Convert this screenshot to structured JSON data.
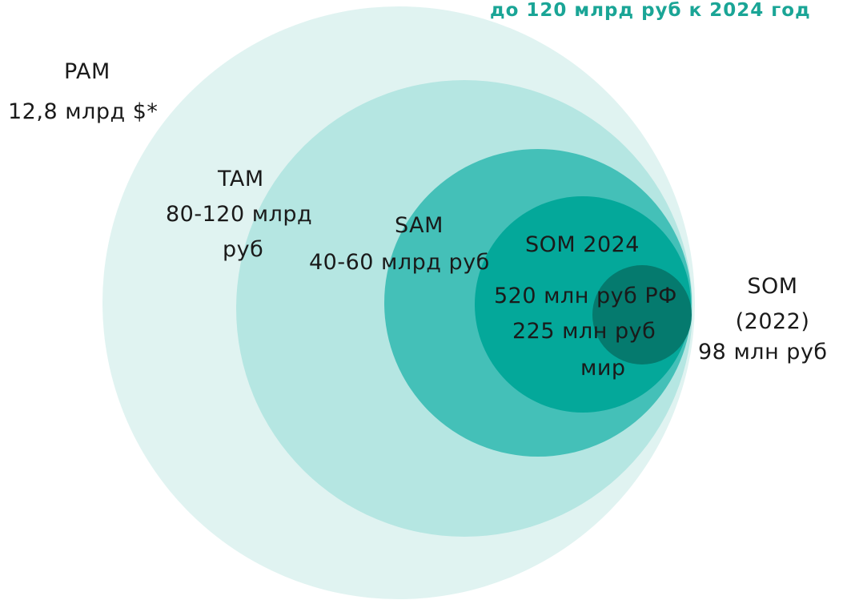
{
  "note": "до 120 млрд руб к 2024 год",
  "colors": {
    "pam": "#e0f3f1",
    "tam": "#b5e6e2",
    "sam": "#44c0b8",
    "som2024": "#04a89a",
    "som2022": "#057a6e",
    "note": "#1aa596"
  },
  "labels": {
    "pam_title": "PAM",
    "pam_value": "12,8 млрд $*",
    "tam_title": "TAM",
    "tam_value_1": "80-120 млрд",
    "tam_value_2": "руб",
    "sam_title": "SAM",
    "sam_value": "40-60 млрд руб",
    "som2024_title": "SOM 2024",
    "som2024_value_1": "520 млн руб РФ",
    "som2024_value_2": "225 млн руб",
    "som2024_value_3": "мир",
    "som2022_title_1": "SOM",
    "som2022_title_2": "(2022)",
    "som2022_value": "98 млн руб"
  }
}
